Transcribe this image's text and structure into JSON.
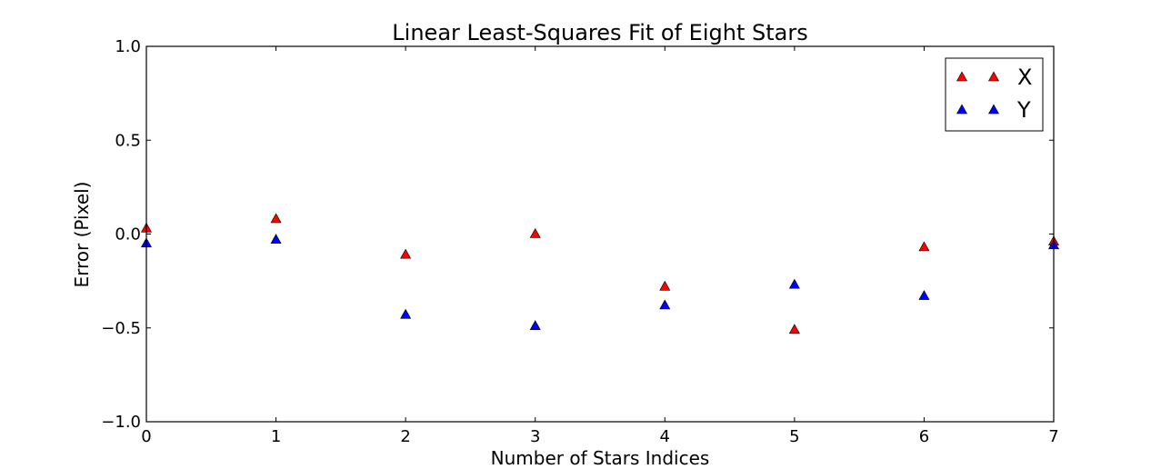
{
  "chart_data": {
    "type": "scatter",
    "title": "Linear Least-Squares Fit of Eight Stars",
    "xlabel": "Number of Stars Indices",
    "ylabel": "Error (Pixel)",
    "xlim": [
      0,
      7
    ],
    "ylim": [
      -1.0,
      1.0
    ],
    "x_ticks": [
      0,
      1,
      2,
      3,
      4,
      5,
      6,
      7
    ],
    "x_tick_labels": [
      "0",
      "1",
      "2",
      "3",
      "4",
      "5",
      "6",
      "7"
    ],
    "y_ticks": [
      -1.0,
      -0.5,
      0.0,
      0.5,
      1.0
    ],
    "y_tick_labels": [
      "−1.0",
      "−0.5",
      "0.0",
      "0.5",
      "1.0"
    ],
    "grid": false,
    "legend_position": "top-right",
    "marker": "triangle",
    "series": [
      {
        "name": "X",
        "color": "#ff0000",
        "x": [
          0,
          1,
          2,
          3,
          4,
          5,
          6,
          7
        ],
        "y": [
          0.03,
          0.08,
          -0.11,
          0.0,
          -0.28,
          -0.51,
          -0.07,
          -0.04
        ]
      },
      {
        "name": "Y",
        "color": "#0000ff",
        "x": [
          0,
          1,
          2,
          3,
          4,
          5,
          6,
          7
        ],
        "y": [
          -0.05,
          -0.03,
          -0.43,
          -0.49,
          -0.38,
          -0.27,
          -0.33,
          -0.06
        ]
      }
    ]
  }
}
